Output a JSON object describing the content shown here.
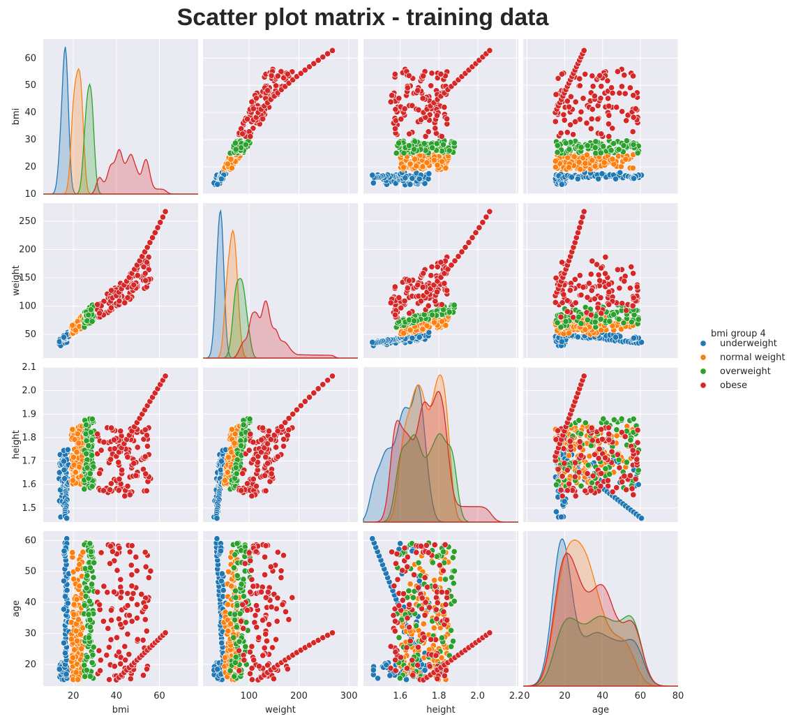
{
  "chart_data": {
    "type": "scatter",
    "title": "Scatter plot matrix - training data",
    "variables": [
      "bmi",
      "weight",
      "height",
      "age"
    ],
    "legend": {
      "title": "bmi group 4",
      "placement": "right",
      "entries": [
        {
          "name": "underweight",
          "color": "#1f77b4"
        },
        {
          "name": "normal weight",
          "color": "#ff7f0e"
        },
        {
          "name": "overweight",
          "color": "#2ca02c"
        },
        {
          "name": "obese",
          "color": "#d62728"
        }
      ]
    },
    "grid": true,
    "axes": {
      "bmi": {
        "label": "bmi",
        "range": [
          6,
          78
        ],
        "ticks": [
          10,
          20,
          30,
          40,
          50,
          60
        ],
        "xticks": [
          "20",
          "40",
          "60"
        ],
        "xtickvals": [
          20,
          40,
          60
        ],
        "yticks": [
          "10",
          "20",
          "30",
          "40",
          "50",
          "60"
        ],
        "ytickvals": [
          10,
          20,
          30,
          40,
          50,
          60
        ]
      },
      "weight": {
        "label": "weight",
        "range": [
          8,
          318
        ],
        "xticks": [
          "100",
          "200",
          "300"
        ],
        "xtickvals": [
          100,
          200,
          300
        ],
        "yticks": [
          "50",
          "100",
          "150",
          "200",
          "250"
        ],
        "ytickvals": [
          50,
          100,
          150,
          200,
          250
        ]
      },
      "height": {
        "label": "height",
        "range": [
          1.41,
          2.21
        ],
        "xticks": [
          "1.4",
          "1.6",
          "1.8",
          "2.0",
          "2.2"
        ],
        "xtickvals": [
          1.4,
          1.6,
          1.8,
          2.0,
          2.2
        ],
        "yticks": [
          "1.5",
          "1.6",
          "1.7",
          "1.8",
          "1.9",
          "2.0",
          "2.1"
        ],
        "ytickvals": [
          1.5,
          1.6,
          1.7,
          1.8,
          1.9,
          2.0,
          2.1
        ]
      },
      "age": {
        "label": "age",
        "range": [
          -2,
          80
        ],
        "xticks": [
          "0",
          "20",
          "40",
          "60",
          "80"
        ],
        "xtickvals": [
          0,
          20,
          40,
          60,
          80
        ],
        "yticks": [
          "20",
          "30",
          "40",
          "50",
          "60"
        ],
        "ytickvals": [
          20,
          30,
          40,
          50,
          60
        ]
      }
    },
    "y_axis_ranges": {
      "bmi": [
        10,
        67
      ],
      "weight": [
        8,
        282
      ],
      "height": [
        1.44,
        2.1
      ],
      "age": [
        13,
        63
      ]
    },
    "diagonal": "kde",
    "kde_peaks": {
      "bmi": {
        "underweight": 17,
        "normal weight": 23,
        "overweight": 27,
        "obese": 38
      },
      "weight": {
        "underweight": 45,
        "normal weight": 68,
        "overweight": 80,
        "obese": 110
      },
      "height": {
        "underweight": 1.58,
        "normal weight": 1.74,
        "overweight": 1.73,
        "obese": 1.75
      },
      "age": {
        "underweight": 20,
        "normal weight": 23,
        "overweight": 35,
        "obese": 25
      }
    }
  }
}
